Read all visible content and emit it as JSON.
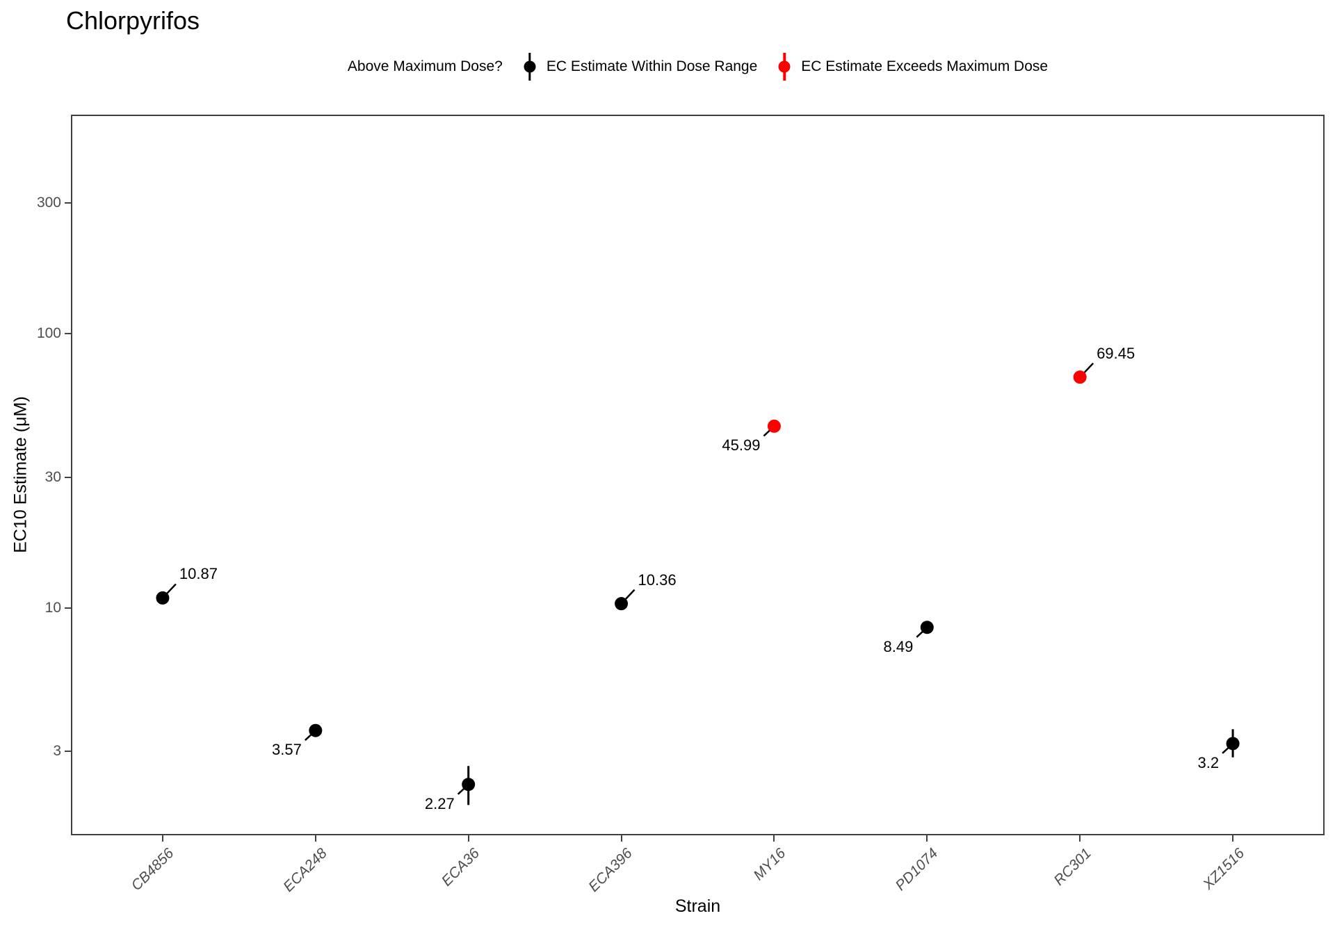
{
  "title": "Chlorpyrifos",
  "legend": {
    "title": "Above Maximum Dose?",
    "items": [
      {
        "label": "EC Estimate Within Dose Range",
        "group": "within",
        "color": "#000000"
      },
      {
        "label": "EC Estimate Exceeds Maximum Dose",
        "group": "exceeds",
        "color": "#ff0000"
      }
    ]
  },
  "axes": {
    "y": {
      "title": "EC10 Estimate (μM)",
      "scale": "log10",
      "ticks": [
        300,
        100,
        30,
        10,
        3
      ]
    },
    "x": {
      "title": "Strain",
      "categories": [
        "CB4856",
        "ECA248",
        "ECA36",
        "ECA396",
        "MY16",
        "PD1074",
        "RC301",
        "XZ1516"
      ]
    }
  },
  "chart_data": {
    "type": "scatter",
    "title": "Chlorpyrifos",
    "xlabel": "Strain",
    "ylabel": "EC10 Estimate (μM)",
    "yscale": "log10",
    "ylim": [
      1.5,
      630
    ],
    "yticks": [
      3,
      10,
      30,
      100,
      300
    ],
    "grid": false,
    "legend_position": "top",
    "categories": [
      "CB4856",
      "ECA248",
      "ECA36",
      "ECA396",
      "MY16",
      "PD1074",
      "RC301",
      "XZ1516"
    ],
    "series": [
      {
        "name": "EC10 Estimate",
        "points": [
          {
            "strain": "CB4856",
            "value": 10.87,
            "label": "10.87",
            "group": "within",
            "err_low": null,
            "err_high": null,
            "label_side": "upper-right"
          },
          {
            "strain": "ECA248",
            "value": 3.57,
            "label": "3.57",
            "group": "within",
            "err_low": null,
            "err_high": null,
            "label_side": "lower-left"
          },
          {
            "strain": "ECA36",
            "value": 2.27,
            "label": "2.27",
            "group": "within",
            "err_low": 1.91,
            "err_high": 2.65,
            "label_side": "lower-left"
          },
          {
            "strain": "ECA396",
            "value": 10.36,
            "label": "10.36",
            "group": "within",
            "err_low": null,
            "err_high": null,
            "label_side": "upper-right"
          },
          {
            "strain": "MY16",
            "value": 45.99,
            "label": "45.99",
            "group": "exceeds",
            "err_low": null,
            "err_high": null,
            "label_side": "lower-left"
          },
          {
            "strain": "PD1074",
            "value": 8.49,
            "label": "8.49",
            "group": "within",
            "err_low": null,
            "err_high": null,
            "label_side": "lower-left"
          },
          {
            "strain": "RC301",
            "value": 69.45,
            "label": "69.45",
            "group": "exceeds",
            "err_low": null,
            "err_high": null,
            "label_side": "upper-right"
          },
          {
            "strain": "XZ1516",
            "value": 3.2,
            "label": "3.2",
            "group": "within",
            "err_low": 2.85,
            "err_high": 3.61,
            "label_side": "lower-left"
          }
        ]
      }
    ],
    "colors": {
      "within": "#000000",
      "exceeds": "#ff0000"
    }
  }
}
